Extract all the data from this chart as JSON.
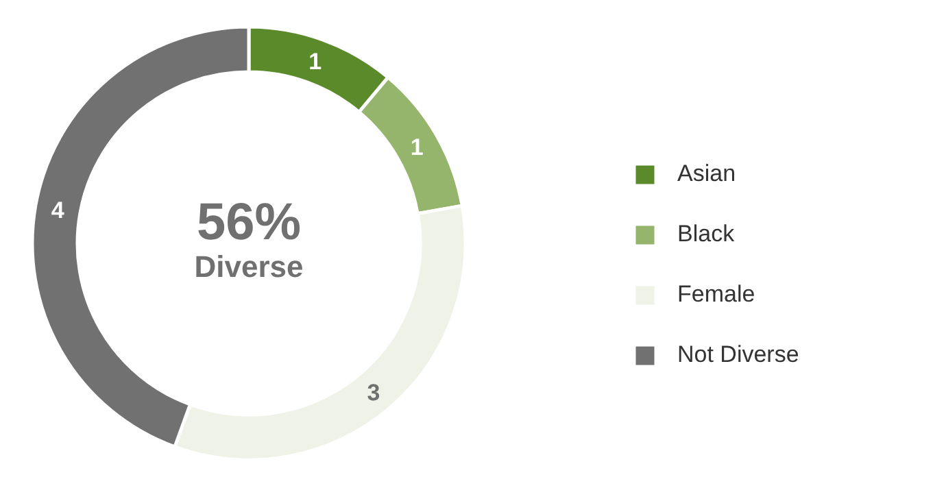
{
  "chart_data": {
    "type": "donut",
    "categories": [
      "Asian",
      "Black",
      "Female",
      "Not Diverse"
    ],
    "values": [
      1,
      1,
      3,
      4
    ],
    "colors": [
      "#5b8a2b",
      "#95b46c",
      "#eef2e7",
      "#717171"
    ],
    "data_labels": true,
    "legend": "right",
    "annotations": [
      "56%",
      "Diverse"
    ]
  }
}
